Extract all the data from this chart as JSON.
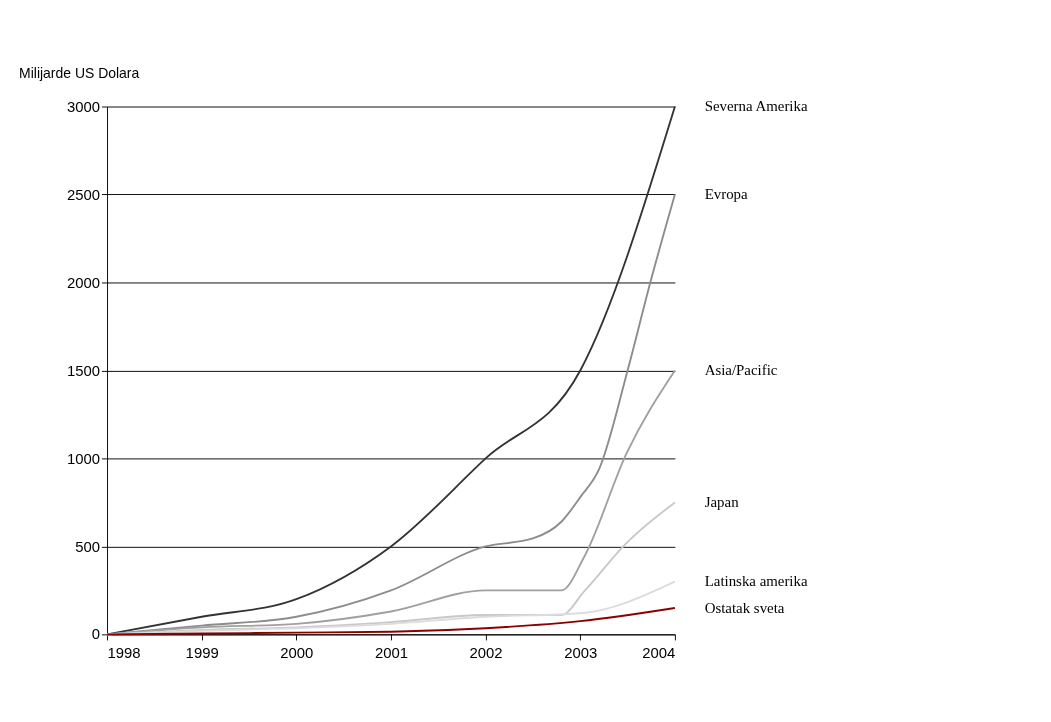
{
  "chart_data": {
    "type": "line",
    "ylabel": "Milijarde US Dolara",
    "xlim": [
      1998,
      2004
    ],
    "xticks": [
      1998,
      1999,
      2000,
      2001,
      2002,
      2003,
      2004
    ],
    "ylim": [
      0,
      3000
    ],
    "yticks": [
      0,
      500,
      1000,
      1500,
      2000,
      2500,
      3000
    ],
    "grid": "y",
    "series": [
      {
        "name": "Severna Amerika",
        "color": "#333333",
        "x": [
          1998,
          1999,
          2000,
          2001,
          2002,
          2003,
          2004
        ],
        "values": [
          0,
          100,
          200,
          500,
          1000,
          1500,
          3000
        ]
      },
      {
        "name": "Evropa",
        "color": "#8c8c8c",
        "x": [
          1998,
          1999,
          2000,
          2001,
          2002,
          2002.5,
          2002.8,
          2003,
          2003.2,
          2003.5,
          2003.74,
          2004
        ],
        "values": [
          0,
          50,
          100,
          250,
          500,
          545,
          640,
          780,
          940,
          1500,
          2000,
          2500
        ]
      },
      {
        "name": "Asia/Pacific",
        "color": "#a0a0a0",
        "x": [
          1998,
          1999,
          2000,
          2001,
          2002,
          2002.4,
          2002.8,
          2003.05,
          2003.49,
          2004
        ],
        "values": [
          0,
          40,
          60,
          130,
          250,
          250,
          250,
          450,
          1030,
          1500
        ]
      },
      {
        "name": "Japan",
        "color": "#c8c8c8",
        "x": [
          1998,
          1999,
          2000,
          2001,
          2002,
          2002.8,
          2003.05,
          2003.49,
          2004
        ],
        "values": [
          0,
          25,
          40,
          70,
          110,
          110,
          250,
          520,
          750
        ]
      },
      {
        "name": "Latinska amerika",
        "color": "#dcdcdc",
        "x": [
          1998,
          1999,
          2000,
          2001,
          2002,
          2003,
          2004
        ],
        "values": [
          0,
          20,
          35,
          60,
          100,
          120,
          300
        ]
      },
      {
        "name": "Ostatak sveta",
        "color": "#8b0000",
        "x": [
          1998,
          1999,
          2000,
          2001,
          2002,
          2003,
          2004
        ],
        "values": [
          0,
          5,
          10,
          15,
          35,
          75,
          150
        ]
      }
    ]
  }
}
